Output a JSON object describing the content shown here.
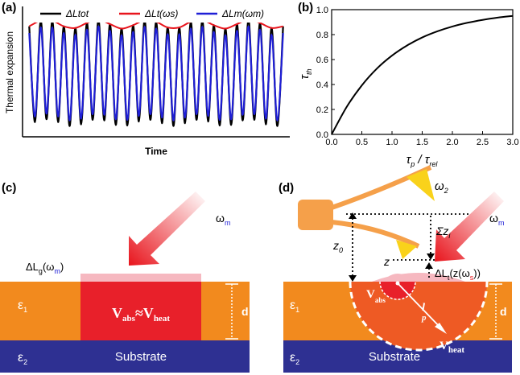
{
  "chart_data": [
    {
      "type": "line",
      "panel": "(a)",
      "ylabel": "Thermal expansion",
      "xlabel": "Time",
      "xlim": [
        -0.3,
        22.3
      ],
      "ylim": [
        -1.05,
        1.05
      ],
      "series": [
        {
          "name": "ΔLtot",
          "color": "#000000",
          "x": [
            0,
            0.5,
            1,
            1.5,
            2,
            2.5,
            3,
            3.5,
            4,
            4.5,
            5,
            5.5,
            6,
            6.5,
            7,
            7.5,
            8,
            8.5,
            9,
            9.5,
            10,
            10.5,
            11,
            11.5,
            12,
            12.5,
            13,
            13.5,
            14,
            14.5,
            15,
            15.5,
            16,
            16.5,
            17,
            17.5,
            18,
            18.5,
            19,
            19.5,
            20,
            20.5,
            21,
            21.5,
            22
          ],
          "values": [
            0.84,
            -0.86,
            0.94,
            -0.81,
            0.94,
            -0.86,
            0.84,
            -0.93,
            0.81,
            -0.9,
            0.9,
            -0.82,
            0.96,
            -0.83,
            0.88,
            -0.91,
            0.8,
            -0.92,
            0.86,
            -0.85,
            0.95,
            -0.82,
            0.92,
            -0.88,
            0.82,
            -0.93,
            0.82,
            -0.88,
            0.92,
            -0.82,
            0.95,
            -0.85,
            0.86,
            -0.92,
            0.8,
            -0.91,
            0.88,
            -0.83,
            0.96,
            -0.82,
            0.9,
            -0.9,
            0.81,
            -0.93,
            0.84
          ]
        },
        {
          "name": "ΔLm(ωm)",
          "color": "#1f1fd6",
          "x": [
            0,
            0.5,
            1,
            1.5,
            2,
            2.5,
            3,
            3.5,
            4,
            4.5,
            5,
            5.5,
            6,
            6.5,
            7,
            7.5,
            8,
            8.5,
            9,
            9.5,
            10,
            10.5,
            11,
            11.5,
            12,
            12.5,
            13,
            13.5,
            14,
            14.5,
            15,
            15.5,
            16,
            16.5,
            17,
            17.5,
            18,
            18.5,
            19,
            19.5,
            20,
            20.5,
            21,
            21.5,
            22
          ],
          "values": [
            0.72,
            -0.76,
            0.82,
            -0.71,
            0.82,
            -0.76,
            0.72,
            -0.83,
            0.69,
            -0.8,
            0.78,
            -0.72,
            0.84,
            -0.73,
            0.76,
            -0.81,
            0.68,
            -0.82,
            0.74,
            -0.75,
            0.83,
            -0.72,
            0.8,
            -0.78,
            0.7,
            -0.83,
            0.7,
            -0.78,
            0.8,
            -0.72,
            0.83,
            -0.75,
            0.74,
            -0.82,
            0.68,
            -0.81,
            0.76,
            -0.73,
            0.84,
            -0.72,
            0.78,
            -0.8,
            0.69,
            -0.83,
            0.72
          ]
        },
        {
          "name": "ΔLt(ωs)",
          "color": "#e8141c",
          "x": [
            0,
            1,
            2,
            3,
            4,
            5,
            6,
            7,
            8,
            9,
            10,
            11,
            12,
            13,
            14,
            15,
            16,
            17,
            18,
            19,
            20,
            21,
            22
          ],
          "values": [
            0.84,
            0.94,
            0.94,
            0.84,
            0.81,
            0.9,
            0.96,
            0.88,
            0.8,
            0.86,
            0.95,
            0.92,
            0.82,
            0.82,
            0.92,
            0.95,
            0.86,
            0.8,
            0.88,
            0.96,
            0.9,
            0.81,
            0.84
          ]
        }
      ]
    },
    {
      "type": "line",
      "panel": "(b)",
      "ylabel": [
        "τ",
        "th"
      ],
      "xlabel": [
        "τ",
        "p",
        " / τ",
        "rel"
      ],
      "xlim": [
        0,
        3
      ],
      "ylim": [
        0,
        1
      ],
      "xticks": [
        {
          "value": 0,
          "label": "0.0"
        },
        0.5,
        {
          "value": 1,
          "label": "1.0"
        },
        1.5,
        {
          "value": 2,
          "label": "2.0"
        },
        2.5,
        {
          "value": 3,
          "label": "3.0"
        }
      ],
      "yticks": [
        {
          "value": 0,
          "label": "0.0"
        },
        0.2,
        0.4,
        0.6,
        0.8,
        {
          "value": 1,
          "label": "1.0"
        }
      ],
      "series": [
        {
          "color": "#000000",
          "x": [
            0,
            0.25,
            0.5,
            0.75,
            1,
            1.25,
            1.5,
            1.75,
            2,
            2.25,
            2.5,
            2.75,
            3
          ],
          "values": [
            0,
            0.221,
            0.393,
            0.528,
            0.632,
            0.713,
            0.777,
            0.826,
            0.865,
            0.895,
            0.918,
            0.936,
            0.95
          ]
        }
      ]
    }
  ],
  "diagram": {
    "c": {
      "panel": "(c)",
      "omega": [
        "ω",
        "m"
      ],
      "dlg": [
        "ΔL",
        "g",
        "(ω",
        "m",
        ")"
      ],
      "eps1": [
        "ε",
        "1"
      ],
      "eps2": [
        "ε",
        "2"
      ],
      "substrate": "Substrate",
      "vol": [
        "V",
        "abs",
        "≈V",
        "heat"
      ],
      "d": "d"
    },
    "d": {
      "panel": "(d)",
      "omega2": [
        "ω",
        "2"
      ],
      "omegam": [
        "ω",
        "m"
      ],
      "sumz": [
        "Σz",
        "i"
      ],
      "z0": [
        "z",
        "0"
      ],
      "z": "z",
      "dlt": [
        "ΔL",
        "t",
        "(z(ω",
        "s",
        "))"
      ],
      "vabs": [
        "V",
        "abs"
      ],
      "lp": [
        "l",
        "p"
      ],
      "vheat": [
        "V",
        "heat"
      ],
      "eps1": [
        "ε",
        "1"
      ],
      "eps2": [
        "ε",
        "2"
      ],
      "substrate": "Substrate",
      "d": "d"
    }
  }
}
